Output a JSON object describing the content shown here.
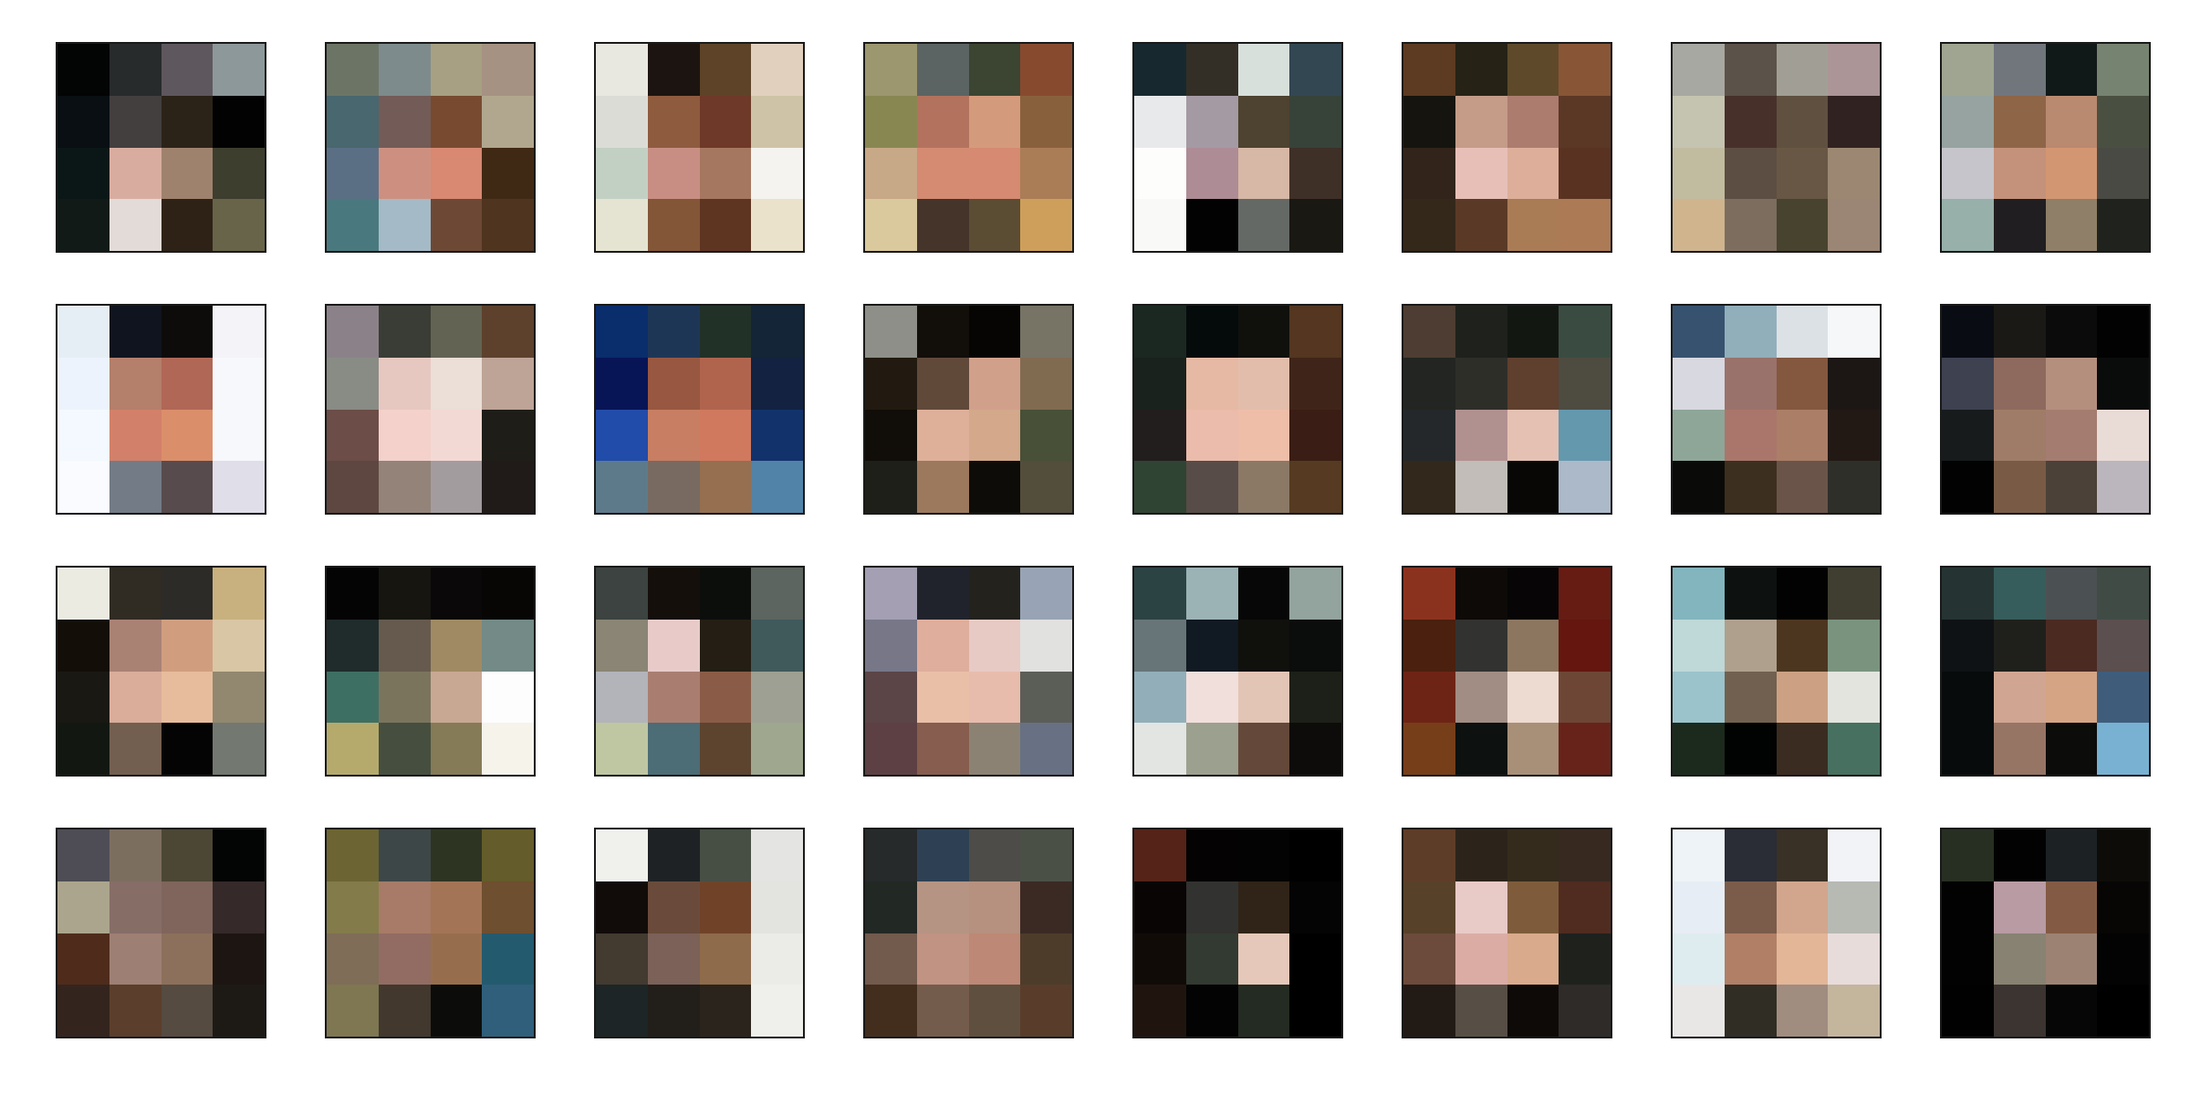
{
  "grid": {
    "rows": 4,
    "columns": 8,
    "cells_per_side": 4,
    "border_color": "#1a1a1a",
    "background": "#ffffff"
  },
  "tiles": [
    [
      "#030404",
      "#272b2b",
      "#5e575e",
      "#8d989a",
      "#090f13",
      "#433f3f",
      "#2c2318",
      "#020202",
      "#0b1717",
      "#d8ada0",
      "#9f826d",
      "#3e3e2e",
      "#111a16",
      "#e2dbd7",
      "#2e2217",
      "#676449"
    ],
    [
      "#6c7565",
      "#7d8b8c",
      "#a7a082",
      "#a69282",
      "#48676e",
      "#735b57",
      "#784b30",
      "#b1a78e",
      "#5a6f84",
      "#cd9080",
      "#d98872",
      "#402914",
      "#49797f",
      "#a4bac6",
      "#6d4935",
      "#4f3420"
    ],
    [
      "#e8e7e0",
      "#1c1410",
      "#5e4328",
      "#e2d0bf",
      "#dcdcd7",
      "#8e5b3e",
      "#6e3928",
      "#cec3a6",
      "#c2d0c3",
      "#c88e83",
      "#a67760",
      "#f4f3ef",
      "#e5e3d1",
      "#825637",
      "#5e3521",
      "#ebe2cb"
    ],
    [
      "#9d976f",
      "#5b6462",
      "#3b4531",
      "#884a2f",
      "#888752",
      "#b3725d",
      "#d49a7c",
      "#88613c",
      "#c7a887",
      "#d58a72",
      "#d58a71",
      "#aa7d56",
      "#dac99c",
      "#45342a",
      "#5b4c34",
      "#ce9f5a"
    ],
    [
      "#17292f",
      "#342f26",
      "#d8e0dc",
      "#334753",
      "#e8e9ea",
      "#a49aa3",
      "#4e4230",
      "#374339",
      "#fdfdfc",
      "#ad8c96",
      "#d7b7a5",
      "#3e3027",
      "#f9f9f7",
      "#020202",
      "#646966",
      "#1a1813"
    ],
    [
      "#5d3a22",
      "#262216",
      "#5e4a2a",
      "#885636",
      "#16140e",
      "#c49c88",
      "#ac7c6f",
      "#5b3726",
      "#32241a",
      "#e7bfb7",
      "#ddaf9a",
      "#5a3222",
      "#34281a",
      "#5a3a27",
      "#a97c56",
      "#ac7a55"
    ],
    [
      "#a8a8a2",
      "#5b5249",
      "#a19f95",
      "#ab9597",
      "#c5c4b0",
      "#47302a",
      "#5f5040",
      "#302220",
      "#c1bca0",
      "#5c4e42",
      "#675744",
      "#9b8772",
      "#cfb48e",
      "#7c6d5f",
      "#48432f",
      "#9b8574"
    ],
    [
      "#9fa590",
      "#71767d",
      "#111818",
      "#778371",
      "#96a3a0",
      "#8e6547",
      "#b98a6f",
      "#4a5041",
      "#c5c5cb",
      "#c4917a",
      "#d39672",
      "#4a4a44",
      "#97b0a9",
      "#201e20",
      "#8f7f68",
      "#20221e"
    ],
    [
      "#e6eef5",
      "#10141e",
      "#0d0c0b",
      "#f4f3f8",
      "#edf3fc",
      "#b47f6b",
      "#b06756",
      "#f7f8fc",
      "#f3f9fe",
      "#d3806a",
      "#da8f6a",
      "#f7f8fc",
      "#fafbfe",
      "#727b86",
      "#574b4d",
      "#dfdee9"
    ],
    [
      "#8b8289",
      "#3a3d35",
      "#636353",
      "#5d412c",
      "#888c85",
      "#e7c8c0",
      "#ebdfd7",
      "#bda496",
      "#6c4d47",
      "#f4d1cb",
      "#f3d9d3",
      "#1f1d18",
      "#5d4740",
      "#938379",
      "#a39c9e",
      "#201b19"
    ],
    [
      "#0a2d6c",
      "#1e3656",
      "#213128",
      "#132537",
      "#071556",
      "#985740",
      "#b0644e",
      "#122240",
      "#224ca9",
      "#c77e62",
      "#d0795f",
      "#12326b",
      "#5d7a8b",
      "#786a61",
      "#956f50",
      "#5183a8"
    ],
    [
      "#8e8f88",
      "#120e0a",
      "#060504",
      "#777365",
      "#221a10",
      "#61493a",
      "#d1a08b",
      "#816b50",
      "#110d09",
      "#deb09a",
      "#d3a88b",
      "#485038",
      "#1f1f1a",
      "#9c795c",
      "#0e0c09",
      "#534d3b"
    ],
    [
      "#1b2822",
      "#050b0b",
      "#10110c",
      "#543621",
      "#1a221d",
      "#e5b9a3",
      "#e3bdac",
      "#3f2519",
      "#221e1d",
      "#ebbbab",
      "#efbea9",
      "#3a1d14",
      "#304434",
      "#574c47",
      "#8b7966",
      "#563b22"
    ],
    [
      "#4e3d32",
      "#1f221c",
      "#131712",
      "#3a4c42",
      "#222521",
      "#2e2e29",
      "#5f3f2e",
      "#4e4b41",
      "#25282a",
      "#b19090",
      "#e5c1b4",
      "#6498ad",
      "#32281c",
      "#c2bdb8",
      "#080706",
      "#acb9c8"
    ],
    [
      "#37526f",
      "#91afba",
      "#dce1e5",
      "#f6f7f9",
      "#d8d8e0",
      "#99726b",
      "#84583f",
      "#1c1715",
      "#8ea698",
      "#aa766b",
      "#aa7e67",
      "#221814",
      "#0a0a09",
      "#3d2f1f",
      "#6a544a",
      "#2f2f29"
    ],
    [
      "#090c12",
      "#1b1916",
      "#0b0b0b",
      "#020202",
      "#3d4150",
      "#8d6a5d",
      "#b48f7e",
      "#0a0c0c",
      "#171b1c",
      "#9f7c67",
      "#a57c70",
      "#e9dcd7",
      "#020202",
      "#795b45",
      "#4b4138",
      "#bbb5bd"
    ],
    [
      "#ecebe2",
      "#302b23",
      "#2c2b27",
      "#c8b17f",
      "#140e08",
      "#a98274",
      "#d09e7f",
      "#d8c6a4",
      "#1a1812",
      "#daad9b",
      "#e7bc9c",
      "#928870",
      "#121811",
      "#735f4f",
      "#050404",
      "#737871"
    ],
    [
      "#040404",
      "#161510",
      "#0a0808",
      "#080604",
      "#1f2c2b",
      "#665a4e",
      "#a08a63",
      "#738a86",
      "#3e6f63",
      "#7b745d",
      "#c9a893",
      "#fdfdfd",
      "#b5aa6c",
      "#464f3f",
      "#857b56",
      "#f6f3eb"
    ],
    [
      "#3c4340",
      "#150f0b",
      "#0c0e0c",
      "#5c655f",
      "#8a8575",
      "#e8cbc9",
      "#241e14",
      "#405a5c",
      "#b2b4ba",
      "#a97e71",
      "#8a5c47",
      "#9da092",
      "#bec7a1",
      "#4c6c76",
      "#5c442f",
      "#9fa78f"
    ],
    [
      "#a49fb2",
      "#21232c",
      "#24221d",
      "#98a4b5",
      "#777788",
      "#dfae9c",
      "#e8cac4",
      "#e1e1df",
      "#5c4547",
      "#eabfa8",
      "#e8bcad",
      "#5b5e57",
      "#5d4043",
      "#865d4e",
      "#8c8273",
      "#677183"
    ],
    [
      "#2c4344",
      "#9cb3b6",
      "#070707",
      "#93a39d",
      "#677579",
      "#111922",
      "#10100c",
      "#0b0d0c",
      "#92afb9",
      "#f1dfdc",
      "#e3c5b5",
      "#1d2018",
      "#e2e5e2",
      "#9ca08e",
      "#64493a",
      "#0d0c0a"
    ],
    [
      "#8b321f",
      "#0e0a08",
      "#070505",
      "#661c13",
      "#4b200e",
      "#323230",
      "#8c7660",
      "#64160f",
      "#6e2415",
      "#a18d83",
      "#eddad0",
      "#6e4636",
      "#773e1a",
      "#0d1110",
      "#a88f78",
      "#67231a"
    ],
    [
      "#82b5bd",
      "#0d1211",
      "#020202",
      "#403e31",
      "#bfd8d8",
      "#afa08d",
      "#4d3620",
      "#7a937f",
      "#9bc3cb",
      "#71604f",
      "#cca183",
      "#e4e4de",
      "#1c2a1d",
      "#010202",
      "#3a2c20",
      "#477060"
    ],
    [
      "#253433",
      "#365d5b",
      "#4b5053",
      "#3f4b44",
      "#0e1214",
      "#1f201b",
      "#4b2a22",
      "#5b4f4f",
      "#080b0c",
      "#d0a692",
      "#d4a484",
      "#3f5d7b",
      "#080b0b",
      "#977565",
      "#0c0c0b",
      "#78b1d2"
    ],
    [
      "#4e4d55",
      "#7c6e5f",
      "#4b4734",
      "#030404",
      "#aba58d",
      "#866d66",
      "#7f655b",
      "#352929",
      "#4f2b1b",
      "#9e7f73",
      "#8d705b",
      "#1d1511",
      "#33251e",
      "#5b3e2b",
      "#554b41",
      "#1d1a15"
    ],
    [
      "#6c6433",
      "#3e4747",
      "#2e3422",
      "#645c2a",
      "#837c4a",
      "#a77b67",
      "#a37556",
      "#6e4f2f",
      "#7f6d57",
      "#926c62",
      "#976e4d",
      "#245a6e",
      "#7e7751",
      "#42382e",
      "#0c0d0a",
      "#2f5f7b"
    ],
    [
      "#f0f1ec",
      "#1f2224",
      "#474f45",
      "#e4e4e2",
      "#110c0a",
      "#6a4b3b",
      "#704329",
      "#e3e3df",
      "#433a30",
      "#7b6158",
      "#8e6b4b",
      "#ebebe8",
      "#1d2526",
      "#221e1a",
      "#2b241c",
      "#efefec"
    ],
    [
      "#262a2b",
      "#2e4154",
      "#4d4c48",
      "#4b5047",
      "#222823",
      "#b69483",
      "#b6917f",
      "#3b2a24",
      "#725a4d",
      "#c19383",
      "#bd8875",
      "#4e3c2b",
      "#432e1e",
      "#745c4c",
      "#5f4f3e",
      "#593d2a"
    ],
    [
      "#552318",
      "#040202",
      "#030303",
      "#000000",
      "#0a0505",
      "#323230",
      "#302418",
      "#040404",
      "#110b08",
      "#333a31",
      "#e5c8b9",
      "#000000",
      "#1f150e",
      "#030303",
      "#242b22",
      "#000000"
    ],
    [
      "#5e3d28",
      "#2c241b",
      "#342b1c",
      "#372920",
      "#584129",
      "#e8cac6",
      "#7e5c3b",
      "#502b20",
      "#6c4b3c",
      "#dbaca4",
      "#d9aa8b",
      "#1f211d",
      "#221a15",
      "#574e46",
      "#0d0a08",
      "#2f2b29"
    ],
    [
      "#edf3f7",
      "#2a2c36",
      "#393026",
      "#f1f3f7",
      "#e7edf4",
      "#7b5c4a",
      "#d2a68c",
      "#b7b9b3",
      "#deecf0",
      "#b17f66",
      "#e2b697",
      "#e8dcdb",
      "#e9e7e6",
      "#302d25",
      "#a18c80",
      "#c4b59d"
    ],
    [
      "#272f22",
      "#020202",
      "#1c2124",
      "#0d0c08",
      "#020202",
      "#b89ba3",
      "#835b44",
      "#070605",
      "#020202",
      "#888272",
      "#9c8273",
      "#030303",
      "#010101",
      "#3b3430",
      "#060606",
      "#000000"
    ]
  ]
}
